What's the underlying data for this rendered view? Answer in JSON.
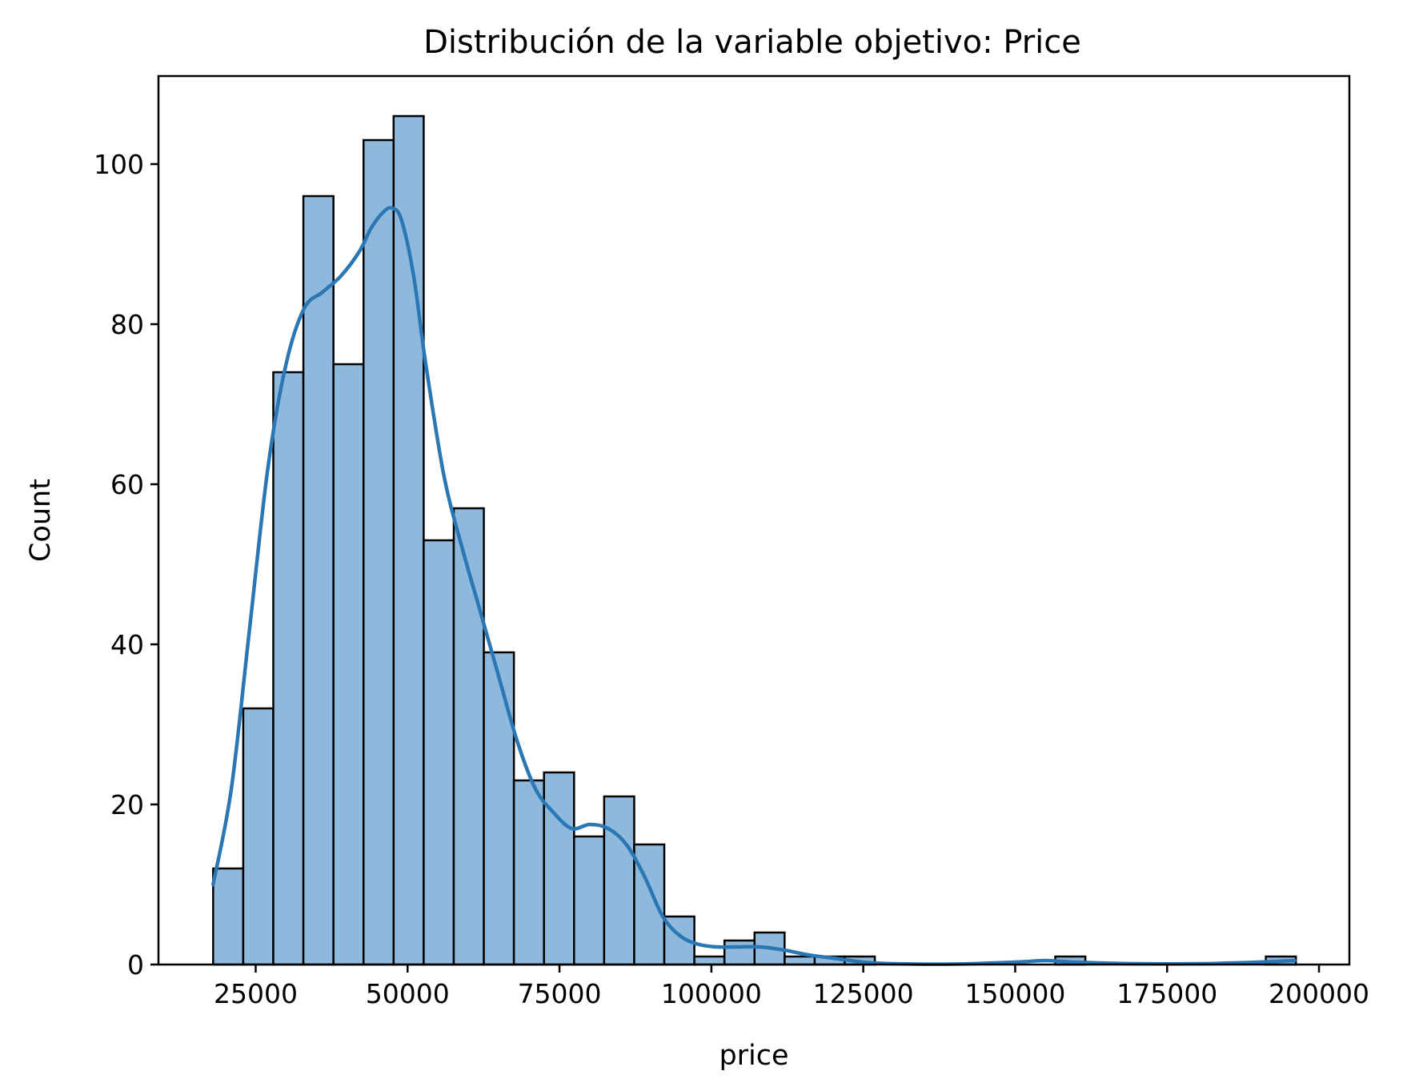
{
  "chart_data": {
    "type": "bar",
    "title": "Distribución de la variable objetivo: Price",
    "xlabel": "price",
    "ylabel": "Count",
    "xlim": [
      9000,
      205000
    ],
    "ylim": [
      0,
      111
    ],
    "x_ticks": [
      25000,
      50000,
      75000,
      100000,
      125000,
      150000,
      175000,
      200000
    ],
    "y_ticks": [
      0,
      20,
      40,
      60,
      80,
      100
    ],
    "bin_start": 18000,
    "bin_width": 4950,
    "counts": [
      12,
      32,
      74,
      96,
      75,
      103,
      106,
      53,
      57,
      39,
      23,
      24,
      16,
      21,
      15,
      6,
      1,
      3,
      4,
      1,
      1,
      1,
      0,
      0,
      0,
      0,
      0,
      0,
      1,
      0,
      0,
      0,
      0,
      0,
      0,
      1
    ],
    "kde": {
      "x": [
        18000,
        21000,
        24000,
        27000,
        30000,
        33000,
        36000,
        39000,
        42000,
        44000,
        46000,
        47500,
        49000,
        51000,
        53000,
        56000,
        59000,
        62000,
        65000,
        68000,
        71000,
        74000,
        77000,
        80000,
        83000,
        86000,
        89000,
        92000,
        95000,
        98000,
        101000,
        104000,
        108000,
        112000,
        116000,
        120000,
        125000,
        130000,
        140000,
        150000,
        155000,
        160000,
        170000,
        180000,
        190000,
        196000
      ],
      "y": [
        10,
        22,
        42,
        62,
        75,
        82,
        84,
        86,
        89,
        92,
        94,
        94.5,
        93,
        86,
        75,
        61,
        52,
        44,
        36,
        28,
        22,
        19,
        17,
        17.5,
        17,
        15,
        11,
        6,
        3.5,
        2.5,
        2.2,
        2.2,
        2.2,
        1.8,
        1.2,
        0.8,
        0.3,
        0.1,
        0.05,
        0.3,
        0.5,
        0.3,
        0.1,
        0.1,
        0.3,
        0.5
      ]
    },
    "colors": {
      "bar_fill": "#8fb9dc",
      "bar_edge": "#000000",
      "kde_line": "#2a77b4"
    },
    "grid": false,
    "legend": false
  }
}
